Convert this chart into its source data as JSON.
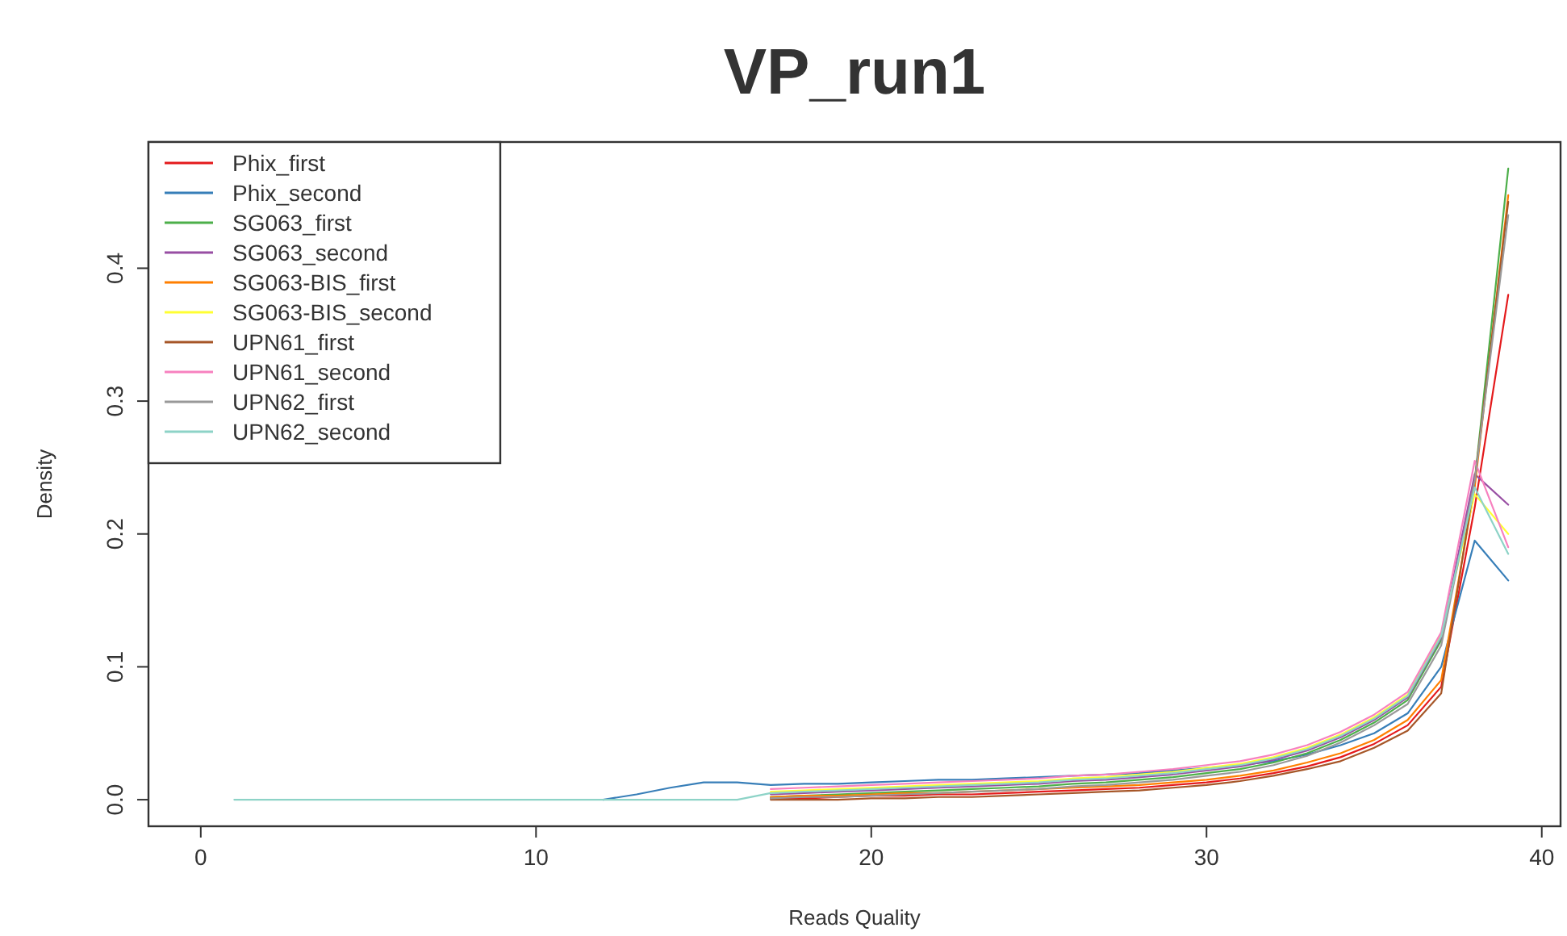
{
  "chart_data": {
    "type": "line",
    "title": "VP_run1",
    "xlabel": "Reads Quality",
    "ylabel": "Density",
    "x": [
      1,
      2,
      3,
      4,
      5,
      6,
      7,
      8,
      9,
      10,
      11,
      12,
      13,
      14,
      15,
      16,
      17,
      18,
      19,
      20,
      21,
      22,
      23,
      24,
      25,
      26,
      27,
      28,
      29,
      30,
      31,
      32,
      33,
      34,
      35,
      36,
      37,
      38,
      39
    ],
    "xlim": [
      -1.56,
      40.56
    ],
    "xticks": [
      0,
      10,
      20,
      30,
      40
    ],
    "ylim": [
      -0.02,
      0.495
    ],
    "yticks": [
      {
        "value": 0,
        "label": "0.0"
      },
      0.1,
      0.2,
      0.3,
      0.4
    ],
    "grid": false,
    "legend": "top left",
    "marker": "none",
    "line_style": "solid",
    "series": [
      {
        "name": "Phix_first",
        "color": "#e41a1c",
        "values": [
          null,
          null,
          null,
          null,
          null,
          null,
          null,
          null,
          null,
          null,
          null,
          null,
          null,
          null,
          null,
          null,
          0.001,
          0.001,
          0.002,
          0.003,
          0.003,
          0.004,
          0.004,
          0.005,
          0.006,
          0.007,
          0.008,
          0.009,
          0.011,
          0.013,
          0.016,
          0.02,
          0.025,
          0.032,
          0.042,
          0.056,
          0.085,
          0.22,
          0.38
        ]
      },
      {
        "name": "Phix_second",
        "color": "#377eb8",
        "values": [
          null,
          null,
          null,
          null,
          null,
          null,
          null,
          null,
          null,
          null,
          null,
          0,
          0.004,
          0.009,
          0.013,
          0.013,
          0.011,
          0.012,
          0.012,
          0.013,
          0.014,
          0.015,
          0.015,
          0.016,
          0.017,
          0.018,
          0.019,
          0.02,
          0.022,
          0.024,
          0.026,
          0.029,
          0.034,
          0.041,
          0.05,
          0.065,
          0.1,
          0.195,
          0.165
        ]
      },
      {
        "name": "SG063_first",
        "color": "#4daf4a",
        "values": [
          null,
          null,
          null,
          null,
          null,
          null,
          null,
          null,
          null,
          null,
          null,
          null,
          null,
          null,
          null,
          null,
          0.002,
          0.003,
          0.004,
          0.005,
          0.006,
          0.007,
          0.008,
          0.009,
          0.01,
          0.012,
          0.013,
          0.015,
          0.017,
          0.02,
          0.023,
          0.028,
          0.035,
          0.045,
          0.058,
          0.075,
          0.12,
          0.24,
          0.475
        ]
      },
      {
        "name": "SG063_second",
        "color": "#984ea3",
        "values": [
          null,
          null,
          null,
          null,
          null,
          null,
          null,
          null,
          null,
          null,
          null,
          null,
          null,
          null,
          null,
          null,
          0.004,
          0.005,
          0.006,
          0.007,
          0.008,
          0.009,
          0.01,
          0.011,
          0.012,
          0.014,
          0.015,
          0.017,
          0.019,
          0.022,
          0.025,
          0.03,
          0.037,
          0.047,
          0.06,
          0.077,
          0.122,
          0.245,
          0.222
        ]
      },
      {
        "name": "SG063-BIS_first",
        "color": "#ff7f00",
        "values": [
          null,
          null,
          null,
          null,
          null,
          null,
          null,
          null,
          null,
          null,
          null,
          null,
          null,
          null,
          null,
          null,
          0.002,
          0.003,
          0.003,
          0.004,
          0.005,
          0.005,
          0.006,
          0.007,
          0.008,
          0.009,
          0.01,
          0.011,
          0.013,
          0.015,
          0.018,
          0.022,
          0.028,
          0.035,
          0.045,
          0.06,
          0.09,
          0.235,
          0.455
        ]
      },
      {
        "name": "SG063-BIS_second",
        "color": "#ffff33",
        "values": [
          null,
          null,
          null,
          null,
          null,
          null,
          null,
          null,
          null,
          null,
          null,
          null,
          null,
          null,
          null,
          null,
          0.006,
          0.007,
          0.008,
          0.009,
          0.01,
          0.011,
          0.012,
          0.013,
          0.014,
          0.016,
          0.017,
          0.019,
          0.021,
          0.024,
          0.027,
          0.032,
          0.039,
          0.049,
          0.062,
          0.079,
          0.124,
          0.23,
          0.2
        ]
      },
      {
        "name": "UPN61_first",
        "color": "#a65628",
        "values": [
          null,
          null,
          null,
          null,
          null,
          null,
          null,
          null,
          null,
          null,
          null,
          null,
          null,
          null,
          null,
          null,
          0,
          0,
          0,
          0.001,
          0.001,
          0.002,
          0.002,
          0.003,
          0.004,
          0.005,
          0.006,
          0.007,
          0.009,
          0.011,
          0.014,
          0.018,
          0.023,
          0.029,
          0.039,
          0.052,
          0.08,
          0.24,
          0.45
        ]
      },
      {
        "name": "UPN61_second",
        "color": "#f781bf",
        "values": [
          null,
          null,
          null,
          null,
          null,
          null,
          null,
          null,
          null,
          null,
          null,
          null,
          null,
          null,
          null,
          null,
          0.008,
          0.009,
          0.01,
          0.011,
          0.012,
          0.013,
          0.014,
          0.015,
          0.016,
          0.018,
          0.019,
          0.021,
          0.023,
          0.026,
          0.029,
          0.034,
          0.041,
          0.051,
          0.064,
          0.081,
          0.126,
          0.255,
          0.19
        ]
      },
      {
        "name": "UPN62_first",
        "color": "#999999",
        "values": [
          null,
          null,
          null,
          null,
          null,
          null,
          null,
          null,
          null,
          null,
          null,
          null,
          null,
          null,
          null,
          null,
          0.001,
          0.002,
          0.002,
          0.003,
          0.004,
          0.005,
          0.006,
          0.007,
          0.008,
          0.01,
          0.011,
          0.013,
          0.015,
          0.018,
          0.021,
          0.026,
          0.033,
          0.043,
          0.056,
          0.072,
          0.116,
          0.24,
          0.44
        ]
      },
      {
        "name": "UPN62_second",
        "color": "#8dd3c7",
        "values": [
          0,
          0,
          0,
          0,
          0,
          0,
          0,
          0,
          0,
          0,
          0,
          0,
          0,
          0,
          0,
          0,
          0.005,
          0.006,
          0.007,
          0.008,
          0.009,
          0.01,
          0.011,
          0.012,
          0.013,
          0.015,
          0.016,
          0.018,
          0.02,
          0.023,
          0.026,
          0.031,
          0.038,
          0.048,
          0.061,
          0.078,
          0.123,
          0.235,
          0.185
        ]
      }
    ]
  }
}
